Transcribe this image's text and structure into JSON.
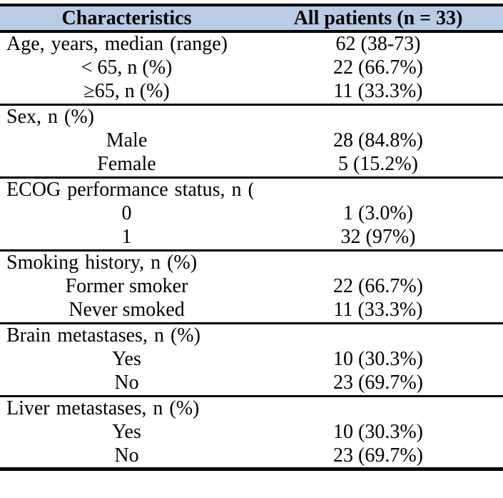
{
  "colors": {
    "header_bg": "#b8cce4",
    "border": "#000000",
    "text": "#000000",
    "page_bg": "#ffffff"
  },
  "table": {
    "columns": [
      "Characteristics",
      "All patients (n = 33)"
    ],
    "sections": [
      {
        "rows": [
          {
            "label": "Age, years, median (range)",
            "value": "62 (38-73)",
            "label_align": "left"
          },
          {
            "label": "< 65, n (%)",
            "value": "22 (66.7%)",
            "label_align": "center"
          },
          {
            "label": "≥65, n (%)",
            "value": "11 (33.3%)",
            "label_align": "center"
          }
        ]
      },
      {
        "rows": [
          {
            "label": "Sex, n (%)",
            "value": "",
            "label_align": "left"
          },
          {
            "label": "Male",
            "value": "28 (84.8%)",
            "label_align": "center"
          },
          {
            "label": "Female",
            "value": "5 (15.2%)",
            "label_align": "center"
          }
        ]
      },
      {
        "rows": [
          {
            "label": "ECOG performance status, n (%)",
            "value": "",
            "label_align": "left"
          },
          {
            "label": "0",
            "value": "1 (3.0%)",
            "label_align": "center"
          },
          {
            "label": "1",
            "value": "32 (97%)",
            "label_align": "center"
          }
        ]
      },
      {
        "rows": [
          {
            "label": "Smoking history, n (%)",
            "value": "",
            "label_align": "left"
          },
          {
            "label": "Former smoker",
            "value": "22 (66.7%)",
            "label_align": "center"
          },
          {
            "label": "Never smoked",
            "value": "11 (33.3%)",
            "label_align": "center"
          }
        ]
      },
      {
        "rows": [
          {
            "label": "Brain metastases, n (%)",
            "value": "",
            "label_align": "left"
          },
          {
            "label": "Yes",
            "value": "10 (30.3%)",
            "label_align": "center"
          },
          {
            "label": "No",
            "value": "23 (69.7%)",
            "label_align": "center"
          }
        ]
      },
      {
        "rows": [
          {
            "label": "Liver metastases, n (%)",
            "value": "",
            "label_align": "left"
          },
          {
            "label": "Yes",
            "value": "10 (30.3%)",
            "label_align": "center"
          },
          {
            "label": "No",
            "value": "23 (69.7%)",
            "label_align": "center"
          }
        ]
      }
    ]
  }
}
